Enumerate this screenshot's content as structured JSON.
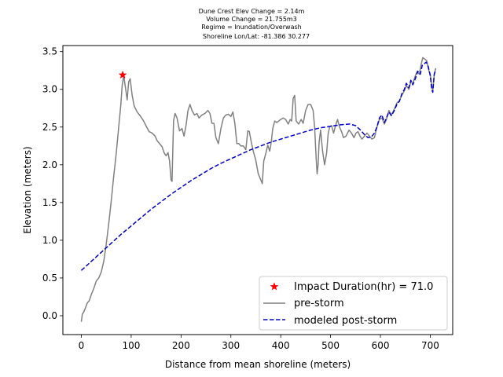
{
  "chart_data": {
    "type": "line",
    "title_lines": [
      "Dune Crest Elev Change = 2.14m",
      "Volume Change = 21.755m3",
      "Regime = Inundation/Overwash",
      "Shoreline Lon/Lat: -81.386 30.277"
    ],
    "xlabel": "Distance from mean shoreline (meters)",
    "ylabel": "Elevation (meters)",
    "xlim": [
      -37,
      745
    ],
    "ylim": [
      -0.25,
      3.58
    ],
    "xticks": [
      0,
      100,
      200,
      300,
      400,
      500,
      600,
      700
    ],
    "xtick_labels": [
      "0",
      "100",
      "200",
      "300",
      "400",
      "500",
      "600",
      "700"
    ],
    "yticks": [
      0.0,
      0.5,
      1.0,
      1.5,
      2.0,
      2.5,
      3.0,
      3.5
    ],
    "ytick_labels": [
      "0.0",
      "0.5",
      "1.0",
      "1.5",
      "2.0",
      "2.5",
      "3.0",
      "3.5"
    ],
    "grid": false,
    "legend_position": "lower-right",
    "legend": [
      "Impact Duration(hr) = 71.0",
      "pre-storm",
      "modeled post-storm"
    ],
    "series": [
      {
        "name": "pre-storm",
        "style": "solid",
        "color": "#808080",
        "points": [
          [
            0,
            -0.08
          ],
          [
            2,
            0.02
          ],
          [
            5,
            0.05
          ],
          [
            8,
            0.1
          ],
          [
            12,
            0.17
          ],
          [
            16,
            0.2
          ],
          [
            20,
            0.28
          ],
          [
            25,
            0.36
          ],
          [
            30,
            0.46
          ],
          [
            35,
            0.5
          ],
          [
            40,
            0.58
          ],
          [
            45,
            0.72
          ],
          [
            50,
            0.95
          ],
          [
            55,
            1.22
          ],
          [
            60,
            1.52
          ],
          [
            65,
            1.85
          ],
          [
            70,
            2.15
          ],
          [
            75,
            2.5
          ],
          [
            79,
            2.78
          ],
          [
            82,
            3.05
          ],
          [
            85,
            3.18
          ],
          [
            88,
            3.05
          ],
          [
            92,
            2.86
          ],
          [
            95,
            3.1
          ],
          [
            98,
            3.14
          ],
          [
            102,
            2.92
          ],
          [
            106,
            2.78
          ],
          [
            112,
            2.7
          ],
          [
            118,
            2.65
          ],
          [
            125,
            2.58
          ],
          [
            131,
            2.5
          ],
          [
            136,
            2.44
          ],
          [
            142,
            2.42
          ],
          [
            148,
            2.38
          ],
          [
            152,
            2.32
          ],
          [
            157,
            2.28
          ],
          [
            162,
            2.24
          ],
          [
            166,
            2.16
          ],
          [
            170,
            2.12
          ],
          [
            174,
            2.16
          ],
          [
            177,
            2.05
          ],
          [
            180,
            1.8
          ],
          [
            182,
            1.78
          ],
          [
            185,
            2.58
          ],
          [
            188,
            2.68
          ],
          [
            192,
            2.62
          ],
          [
            197,
            2.45
          ],
          [
            202,
            2.48
          ],
          [
            206,
            2.38
          ],
          [
            210,
            2.52
          ],
          [
            214,
            2.72
          ],
          [
            218,
            2.8
          ],
          [
            222,
            2.72
          ],
          [
            227,
            2.66
          ],
          [
            232,
            2.68
          ],
          [
            236,
            2.62
          ],
          [
            242,
            2.66
          ],
          [
            248,
            2.68
          ],
          [
            254,
            2.72
          ],
          [
            258,
            2.68
          ],
          [
            262,
            2.55
          ],
          [
            266,
            2.55
          ],
          [
            270,
            2.36
          ],
          [
            275,
            2.28
          ],
          [
            280,
            2.48
          ],
          [
            285,
            2.62
          ],
          [
            290,
            2.66
          ],
          [
            295,
            2.67
          ],
          [
            300,
            2.64
          ],
          [
            304,
            2.7
          ],
          [
            308,
            2.55
          ],
          [
            312,
            2.28
          ],
          [
            316,
            2.28
          ],
          [
            320,
            2.25
          ],
          [
            325,
            2.25
          ],
          [
            330,
            2.2
          ],
          [
            334,
            2.45
          ],
          [
            337,
            2.44
          ],
          [
            341,
            2.3
          ],
          [
            345,
            2.18
          ],
          [
            350,
            2.06
          ],
          [
            355,
            1.88
          ],
          [
            360,
            1.8
          ],
          [
            363,
            1.75
          ],
          [
            366,
            2.05
          ],
          [
            370,
            2.15
          ],
          [
            374,
            2.26
          ],
          [
            378,
            2.18
          ],
          [
            381,
            2.3
          ],
          [
            384,
            2.48
          ],
          [
            388,
            2.58
          ],
          [
            392,
            2.56
          ],
          [
            396,
            2.58
          ],
          [
            400,
            2.6
          ],
          [
            405,
            2.62
          ],
          [
            410,
            2.6
          ],
          [
            415,
            2.54
          ],
          [
            419,
            2.6
          ],
          [
            422,
            2.58
          ],
          [
            425,
            2.88
          ],
          [
            428,
            2.92
          ],
          [
            431,
            2.58
          ],
          [
            436,
            2.54
          ],
          [
            441,
            2.6
          ],
          [
            445,
            2.55
          ],
          [
            450,
            2.72
          ],
          [
            455,
            2.8
          ],
          [
            460,
            2.8
          ],
          [
            465,
            2.72
          ],
          [
            468,
            2.5
          ],
          [
            471,
            2.1
          ],
          [
            473,
            1.88
          ],
          [
            475,
            2.0
          ],
          [
            477,
            2.3
          ],
          [
            480,
            2.46
          ],
          [
            484,
            2.18
          ],
          [
            488,
            2.0
          ],
          [
            492,
            2.15
          ],
          [
            495,
            2.4
          ],
          [
            498,
            2.5
          ],
          [
            502,
            2.52
          ],
          [
            506,
            2.42
          ],
          [
            510,
            2.52
          ],
          [
            514,
            2.6
          ],
          [
            518,
            2.5
          ],
          [
            522,
            2.44
          ],
          [
            526,
            2.36
          ],
          [
            531,
            2.38
          ],
          [
            537,
            2.46
          ],
          [
            542,
            2.42
          ],
          [
            547,
            2.36
          ],
          [
            551,
            2.42
          ],
          [
            555,
            2.44
          ],
          [
            559,
            2.38
          ],
          [
            563,
            2.34
          ],
          [
            568,
            2.38
          ],
          [
            573,
            2.42
          ],
          [
            578,
            2.38
          ],
          [
            583,
            2.34
          ],
          [
            588,
            2.36
          ],
          [
            593,
            2.5
          ],
          [
            598,
            2.6
          ],
          [
            603,
            2.62
          ],
          [
            608,
            2.54
          ],
          [
            612,
            2.6
          ],
          [
            617,
            2.72
          ],
          [
            622,
            2.66
          ],
          [
            628,
            2.74
          ],
          [
            633,
            2.82
          ],
          [
            638,
            2.85
          ],
          [
            643,
            2.92
          ],
          [
            648,
            2.98
          ],
          [
            652,
            3.05
          ],
          [
            657,
            3.0
          ],
          [
            661,
            3.1
          ],
          [
            665,
            3.08
          ],
          [
            670,
            3.18
          ],
          [
            674,
            3.24
          ],
          [
            678,
            3.2
          ],
          [
            682,
            3.34
          ],
          [
            685,
            3.42
          ],
          [
            689,
            3.4
          ],
          [
            693,
            3.38
          ],
          [
            697,
            3.25
          ],
          [
            700,
            3.2
          ],
          [
            703,
            3.05
          ],
          [
            705,
            2.98
          ],
          [
            708,
            3.2
          ],
          [
            711,
            3.28
          ]
        ]
      },
      {
        "name": "modeled post-storm",
        "style": "dashed",
        "color": "#0000cc",
        "points": [
          [
            0,
            0.6
          ],
          [
            20,
            0.72
          ],
          [
            40,
            0.84
          ],
          [
            60,
            0.96
          ],
          [
            80,
            1.08
          ],
          [
            100,
            1.19
          ],
          [
            120,
            1.3
          ],
          [
            140,
            1.41
          ],
          [
            160,
            1.51
          ],
          [
            180,
            1.61
          ],
          [
            200,
            1.7
          ],
          [
            220,
            1.79
          ],
          [
            240,
            1.87
          ],
          [
            260,
            1.95
          ],
          [
            280,
            2.02
          ],
          [
            300,
            2.08
          ],
          [
            320,
            2.14
          ],
          [
            340,
            2.2
          ],
          [
            360,
            2.25
          ],
          [
            380,
            2.3
          ],
          [
            400,
            2.34
          ],
          [
            420,
            2.38
          ],
          [
            440,
            2.42
          ],
          [
            460,
            2.46
          ],
          [
            480,
            2.49
          ],
          [
            500,
            2.51
          ],
          [
            520,
            2.53
          ],
          [
            538,
            2.54
          ],
          [
            550,
            2.52
          ],
          [
            560,
            2.46
          ],
          [
            568,
            2.4
          ],
          [
            575,
            2.36
          ],
          [
            582,
            2.37
          ],
          [
            588,
            2.42
          ],
          [
            593,
            2.5
          ],
          [
            598,
            2.62
          ],
          [
            603,
            2.66
          ],
          [
            608,
            2.56
          ],
          [
            612,
            2.62
          ],
          [
            617,
            2.7
          ],
          [
            622,
            2.65
          ],
          [
            628,
            2.72
          ],
          [
            633,
            2.8
          ],
          [
            638,
            2.84
          ],
          [
            643,
            2.94
          ],
          [
            648,
            3.0
          ],
          [
            652,
            3.08
          ],
          [
            657,
            3.02
          ],
          [
            661,
            3.12
          ],
          [
            665,
            3.06
          ],
          [
            670,
            3.14
          ],
          [
            675,
            3.24
          ],
          [
            680,
            3.2
          ],
          [
            684,
            3.32
          ],
          [
            688,
            3.34
          ],
          [
            692,
            3.36
          ],
          [
            696,
            3.3
          ],
          [
            700,
            3.18
          ],
          [
            703,
            3.0
          ],
          [
            705,
            2.96
          ],
          [
            708,
            3.2
          ],
          [
            711,
            3.26
          ]
        ]
      }
    ],
    "marker": {
      "name": "Impact Duration(hr) = 71.0",
      "symbol": "star",
      "color": "#ff0000",
      "x": 83,
      "y": 3.19
    }
  }
}
